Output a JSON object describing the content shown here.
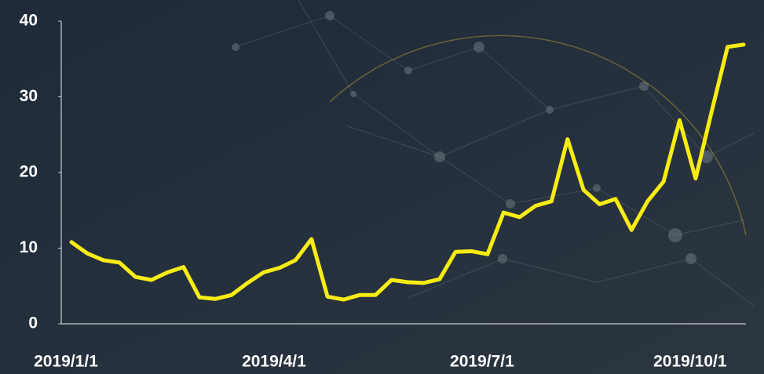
{
  "chart_data": {
    "type": "line",
    "categories": [
      "2019/1/1",
      null,
      null,
      null,
      null,
      null,
      null,
      null,
      null,
      null,
      null,
      null,
      null,
      "2019/4/1",
      null,
      null,
      null,
      null,
      null,
      null,
      null,
      null,
      null,
      null,
      null,
      null,
      "2019/7/1",
      null,
      null,
      null,
      null,
      null,
      null,
      null,
      null,
      null,
      null,
      null,
      null,
      "2019/10/1",
      null,
      null,
      null
    ],
    "values": [
      10.8,
      9.3,
      8.4,
      8.1,
      6.2,
      5.8,
      6.8,
      7.5,
      3.5,
      3.3,
      3.8,
      5.4,
      6.8,
      7.4,
      8.4,
      11.2,
      3.6,
      3.2,
      3.8,
      3.8,
      5.8,
      5.5,
      5.4,
      5.9,
      9.5,
      9.6,
      9.2,
      14.7,
      14.1,
      15.6,
      16.2,
      24.4,
      17.7,
      15.8,
      16.5,
      12.4,
      16.2,
      18.8,
      26.9,
      19.2,
      28,
      36.6,
      36.9
    ],
    "color": "#f7ec13",
    "ylim": [
      0,
      40
    ],
    "yticks": [
      0,
      10,
      20,
      30,
      40
    ],
    "grid": false
  }
}
